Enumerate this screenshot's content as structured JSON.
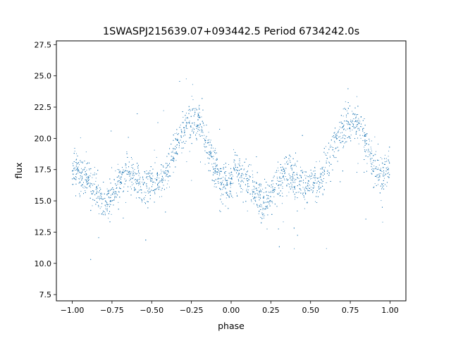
{
  "chart_data": {
    "type": "scatter",
    "title": "1SWASPJ215639.07+093442.5 Period 6734242.0s",
    "xlabel": "phase",
    "ylabel": "flux",
    "xlim": [
      -1.1,
      1.1
    ],
    "ylim": [
      7.0,
      27.8
    ],
    "xticks": [
      -1.0,
      -0.75,
      -0.5,
      -0.25,
      0.0,
      0.25,
      0.5,
      0.75,
      1.0
    ],
    "xtick_labels": [
      "−1.00",
      "−0.75",
      "−0.50",
      "−0.25",
      "0.00",
      "0.25",
      "0.50",
      "0.75",
      "1.00"
    ],
    "yticks": [
      7.5,
      10.0,
      12.5,
      15.0,
      17.5,
      20.0,
      22.5,
      25.0,
      27.5
    ],
    "ytick_labels": [
      "7.5",
      "10.0",
      "12.5",
      "15.0",
      "17.5",
      "20.0",
      "22.5",
      "25.0",
      "27.5"
    ],
    "grid": false,
    "marker_color": "#1f77b4",
    "series": [
      {
        "x": [
          -0.98,
          -0.95,
          -0.9,
          -0.85,
          -0.8,
          -0.75,
          -0.7,
          -0.65,
          -0.6,
          -0.55,
          -0.5,
          -0.45,
          -0.4,
          -0.35,
          -0.3,
          -0.25,
          -0.2,
          -0.15,
          -0.1,
          -0.05,
          0.0,
          0.02,
          0.05,
          0.1,
          0.15,
          0.2,
          0.25,
          0.3,
          0.35,
          0.4,
          0.45,
          0.5,
          0.55,
          0.6,
          0.65,
          0.7,
          0.75,
          0.8,
          0.85,
          0.9,
          0.95,
          0.98
        ],
        "y": [
          17.6,
          17.0,
          16.8,
          15.8,
          14.6,
          15.6,
          16.6,
          17.3,
          16.8,
          16.2,
          16.6,
          16.4,
          17.6,
          19.4,
          20.8,
          21.2,
          21.4,
          19.6,
          17.6,
          16.4,
          16.0,
          17.6,
          17.0,
          16.8,
          15.8,
          14.6,
          15.6,
          16.6,
          17.3,
          16.8,
          16.2,
          16.6,
          16.4,
          17.6,
          19.4,
          20.8,
          21.2,
          21.4,
          19.6,
          17.6,
          16.4,
          17.8
        ]
      }
    ]
  }
}
